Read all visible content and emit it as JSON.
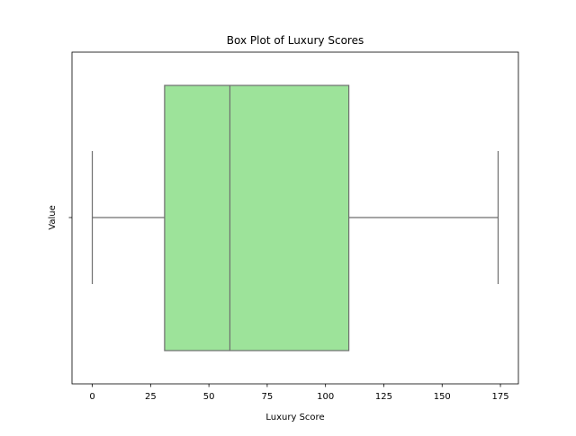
{
  "chart_data": {
    "type": "box",
    "orientation": "horizontal",
    "title": "Box Plot of Luxury Scores",
    "xlabel": "Luxury Score",
    "ylabel": "Value",
    "xlim": [
      -8.7,
      182.7
    ],
    "xticks": [
      0,
      25,
      50,
      75,
      100,
      125,
      150,
      175
    ],
    "box": {
      "whisker_low": 0,
      "q1": 31,
      "median": 59,
      "q3": 110,
      "whisker_high": 174
    },
    "fill_color": "#9de39a",
    "line_color": "#6e6e6e",
    "grid": false,
    "legend": "none"
  }
}
